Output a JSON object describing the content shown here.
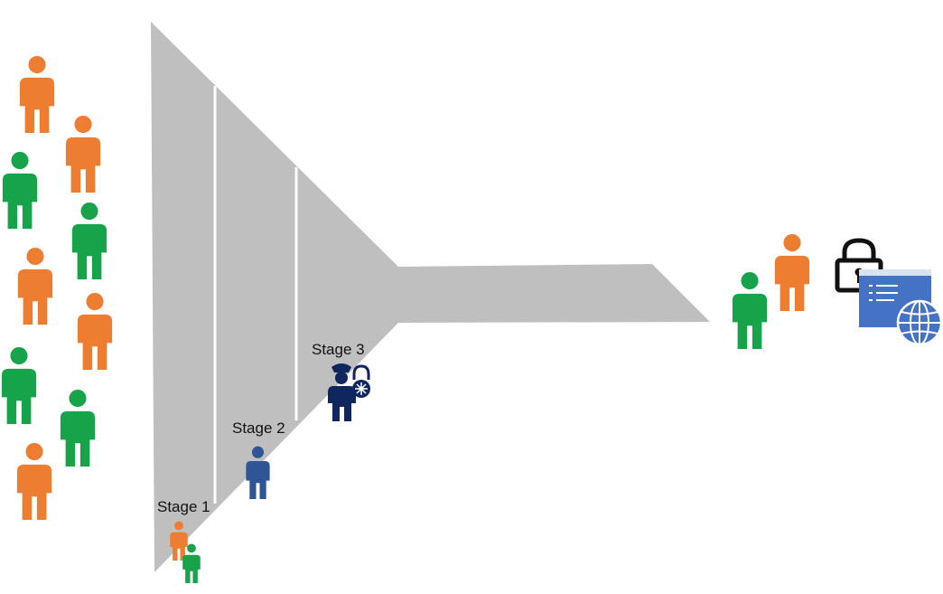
{
  "diagram": {
    "stages": [
      {
        "label": "Stage 1"
      },
      {
        "label": "Stage 2"
      },
      {
        "label": "Stage 3"
      }
    ],
    "colors": {
      "funnel": "#bfbfbf",
      "divider": "#ffffff",
      "orange_person": "#ed7d31",
      "green_person": "#16a34a",
      "blue_person": "#2f5597",
      "guard": "#10265e",
      "lock": "#111111",
      "window": "#4472c4"
    },
    "icons": {
      "crowd": "person-icon",
      "stage2": "person-icon",
      "stage3": "security-guard-icon",
      "secure": "padlock-icon",
      "app": "web-app-window-icon"
    }
  }
}
